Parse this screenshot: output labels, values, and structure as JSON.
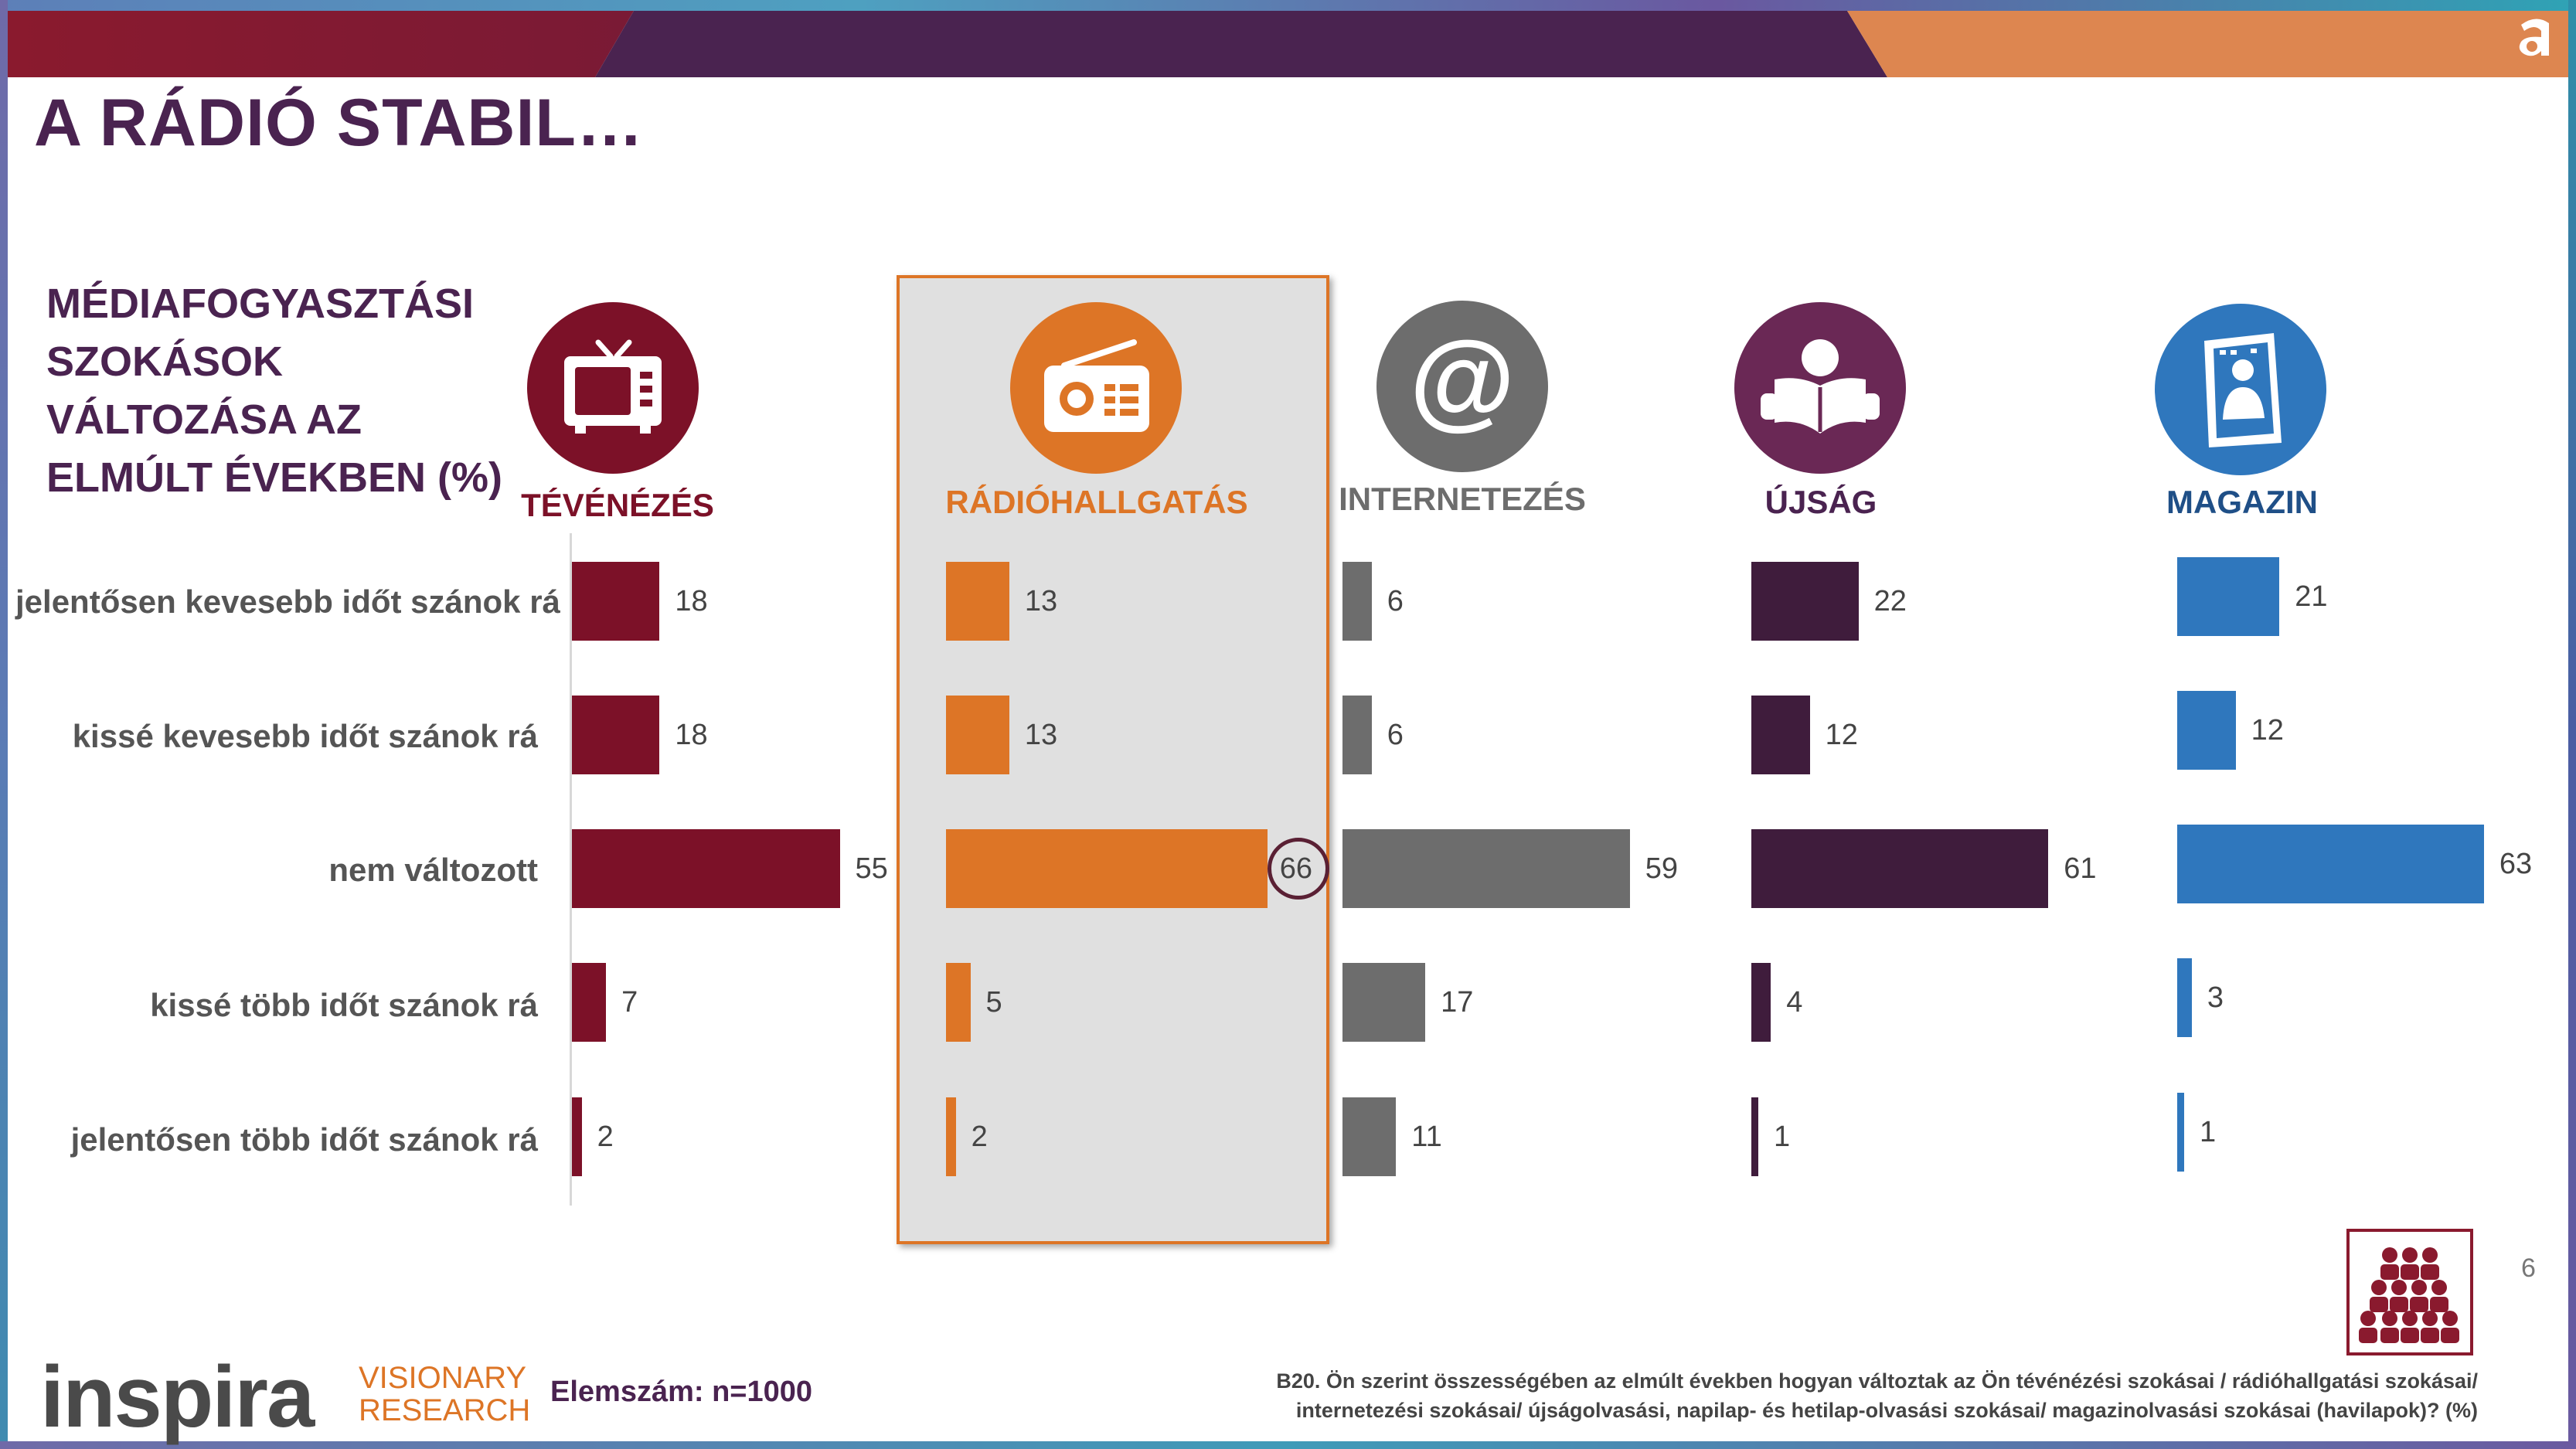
{
  "title": "A RÁDIÓ STABIL…",
  "subtitle_lines": [
    "MÉDIAFOGYASZTÁSI",
    "SZOKÁSOK",
    "VÁLTOZÁSA AZ",
    "ELMÚLT ÉVEKBEN (%)"
  ],
  "colors": {
    "tv": "#7c1128",
    "radio": "#dd7526",
    "internet": "#6d6d6d",
    "newspaper": "#3f1c3c",
    "magazine": "#2f77bd",
    "title": "#4a2350",
    "highlight_border": "#dd7526"
  },
  "chart_data": {
    "type": "bar",
    "orientation": "horizontal",
    "title": "",
    "categories": [
      "jelentősen kevesebb időt szánok rá",
      "kissé kevesebb időt szánok rá",
      "nem változott",
      "kissé több időt szánok rá",
      "jelentősen több időt szánok rá"
    ],
    "series": [
      {
        "name": "TÉVÉNÉZÉS",
        "icon": "tv-icon",
        "values": [
          18,
          18,
          55,
          7,
          2
        ]
      },
      {
        "name": "RÁDIÓHALLGATÁS",
        "icon": "radio-icon",
        "values": [
          13,
          13,
          66,
          5,
          2
        ],
        "highlighted": true,
        "circled_value": 66
      },
      {
        "name": "INTERNETEZÉS",
        "icon": "at-sign-icon",
        "values": [
          6,
          6,
          59,
          17,
          11
        ]
      },
      {
        "name": "ÚJSÁG",
        "icon": "reading-person-icon",
        "values": [
          22,
          12,
          61,
          4,
          1
        ]
      },
      {
        "name": "MAGAZIN",
        "icon": "magazine-icon",
        "values": [
          21,
          12,
          63,
          3,
          1
        ]
      }
    ],
    "unit": "%",
    "grid": false,
    "legend": "none"
  },
  "footer": {
    "logo_main": "inspira",
    "logo_sub_1": "VISIONARY",
    "logo_sub_2": "RESEARCH",
    "sample_size": "Elemszám: n=1000",
    "question_line_1": "B20. Ön szerint összességében az elmúlt években hogyan változtak az Ön tévénézési szokásai / rádióhallgatási szokásai/",
    "question_line_2": "internetezési szokásai/ újságolvasási, napilap- és hetilap-olvasási szokásai/ magazinolvasási szokásai (havilapok)? (%)",
    "page_number": "6",
    "people-icon": "people-group-icon"
  },
  "brand_icon": "a-logo-icon"
}
